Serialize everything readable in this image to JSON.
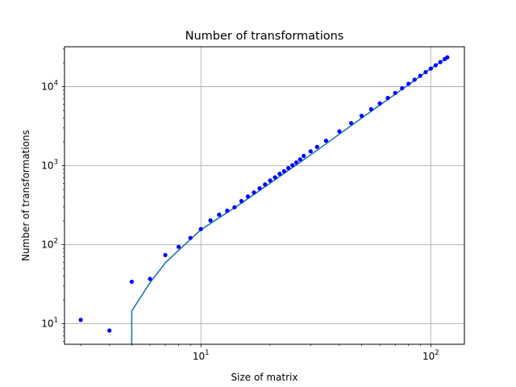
{
  "chart_data": {
    "type": "scatter",
    "title": "Number of transformations",
    "xlabel": "Size of matrix",
    "ylabel": "Number of transformations",
    "xscale": "log",
    "yscale": "log",
    "xlim": [
      2.55,
      140
    ],
    "ylim": [
      5.5,
      32000
    ],
    "grid": true,
    "x_ticks": [
      {
        "value": 10,
        "base": "10",
        "exp": "1"
      },
      {
        "value": 100,
        "base": "10",
        "exp": "2"
      }
    ],
    "y_ticks": [
      {
        "value": 10,
        "base": "10",
        "exp": "1"
      },
      {
        "value": 100,
        "base": "10",
        "exp": "2"
      },
      {
        "value": 1000,
        "base": "10",
        "exp": "3"
      },
      {
        "value": 10000,
        "base": "10",
        "exp": "4"
      }
    ],
    "colors": {
      "scatter": "#0000ff",
      "line": "#1f77b4",
      "grid": "#b0b0b0"
    },
    "series": [
      {
        "type": "scatter",
        "points": [
          [
            3,
            11.2
          ],
          [
            4,
            8.2
          ],
          [
            5,
            34
          ],
          [
            6,
            37
          ],
          [
            7,
            74
          ],
          [
            8,
            94
          ],
          [
            9,
            122
          ],
          [
            10,
            158
          ],
          [
            11,
            203
          ],
          [
            12,
            240
          ],
          [
            13,
            270
          ],
          [
            14,
            298
          ],
          [
            15,
            357
          ],
          [
            16,
            408
          ],
          [
            17,
            458
          ],
          [
            18,
            517
          ],
          [
            19,
            580
          ],
          [
            20,
            650
          ],
          [
            21,
            712
          ],
          [
            22,
            790
          ],
          [
            23,
            852
          ],
          [
            24,
            934
          ],
          [
            25,
            1015
          ],
          [
            26,
            1100
          ],
          [
            27,
            1200
          ],
          [
            28,
            1330
          ],
          [
            30,
            1520
          ],
          [
            32,
            1730
          ],
          [
            35,
            2070
          ],
          [
            40,
            2720
          ],
          [
            45,
            3460
          ],
          [
            50,
            4280
          ],
          [
            55,
            5180
          ],
          [
            60,
            6140
          ],
          [
            65,
            7200
          ],
          [
            70,
            8330
          ],
          [
            75,
            9560
          ],
          [
            80,
            10870
          ],
          [
            85,
            12250
          ],
          [
            90,
            13730
          ],
          [
            95,
            15280
          ],
          [
            100,
            16940
          ],
          [
            105,
            18660
          ],
          [
            110,
            20480
          ],
          [
            115,
            22370
          ],
          [
            118,
            23500
          ]
        ]
      },
      {
        "type": "line",
        "points": [
          [
            5,
            5.5
          ],
          [
            5,
            14.5
          ],
          [
            6,
            33
          ],
          [
            7,
            59
          ],
          [
            8,
            85
          ],
          [
            10,
            155
          ],
          [
            15,
            335
          ],
          [
            20,
            600
          ],
          [
            30,
            1370
          ],
          [
            50,
            4000
          ],
          [
            70,
            8030
          ],
          [
            100,
            16940
          ],
          [
            118,
            23500
          ]
        ]
      }
    ]
  }
}
